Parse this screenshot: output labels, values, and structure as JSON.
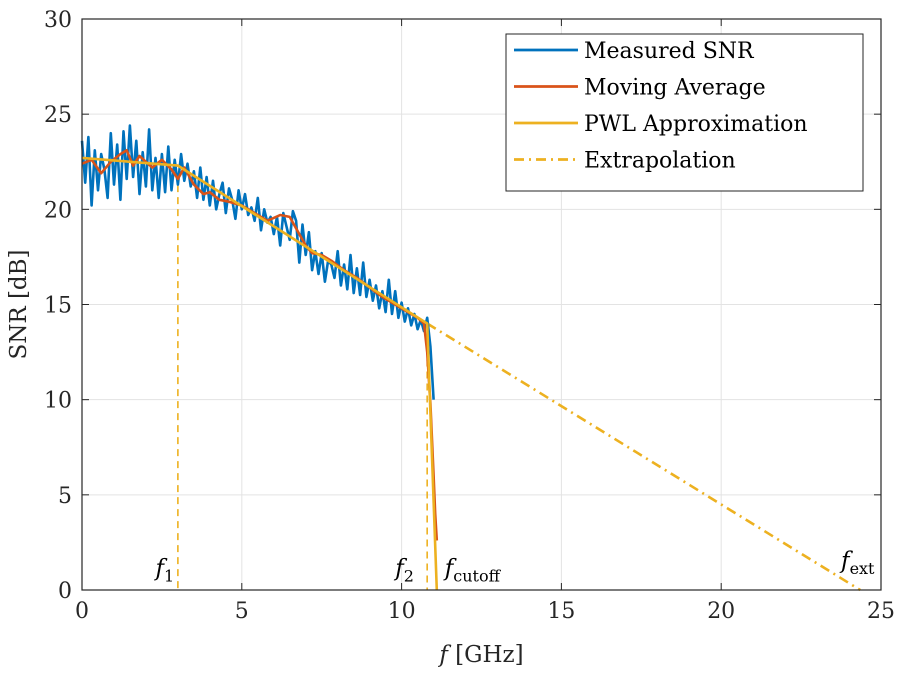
{
  "chart_data": {
    "type": "line",
    "xlabel_italic": "f",
    "xlabel_rest": " [GHz]",
    "ylabel": "SNR [dB]",
    "xlim": [
      0,
      25
    ],
    "ylim": [
      0,
      30
    ],
    "xticks": [
      0,
      5,
      10,
      15,
      20,
      25
    ],
    "yticks": [
      0,
      5,
      10,
      15,
      20,
      25,
      30
    ],
    "grid": true,
    "legend_position": "top-right",
    "colors": {
      "measured": "#0072BD",
      "moving_average": "#D95319",
      "pwl": "#EDB120",
      "extrapolation": "#EDB120"
    },
    "series": [
      {
        "name": "Measured SNR",
        "x": [
          0.0,
          0.1,
          0.2,
          0.3,
          0.4,
          0.5,
          0.6,
          0.7,
          0.8,
          0.9,
          1.0,
          1.1,
          1.2,
          1.3,
          1.4,
          1.5,
          1.6,
          1.7,
          1.8,
          1.9,
          2.0,
          2.1,
          2.2,
          2.3,
          2.4,
          2.5,
          2.6,
          2.7,
          2.8,
          2.9,
          3.0,
          3.1,
          3.2,
          3.3,
          3.4,
          3.5,
          3.6,
          3.7,
          3.8,
          3.9,
          4.0,
          4.1,
          4.2,
          4.3,
          4.4,
          4.5,
          4.6,
          4.7,
          4.8,
          4.9,
          5.0,
          5.1,
          5.2,
          5.3,
          5.4,
          5.5,
          5.6,
          5.7,
          5.8,
          5.9,
          6.0,
          6.1,
          6.2,
          6.3,
          6.4,
          6.5,
          6.6,
          6.7,
          6.8,
          6.9,
          7.0,
          7.1,
          7.2,
          7.3,
          7.4,
          7.5,
          7.6,
          7.7,
          7.8,
          7.9,
          8.0,
          8.1,
          8.2,
          8.3,
          8.4,
          8.5,
          8.6,
          8.7,
          8.8,
          8.9,
          9.0,
          9.1,
          9.2,
          9.3,
          9.4,
          9.5,
          9.6,
          9.7,
          9.8,
          9.9,
          10.0,
          10.1,
          10.2,
          10.3,
          10.4,
          10.5,
          10.6,
          10.7,
          10.8,
          10.9,
          11.0
        ],
        "y": [
          23.6,
          21.4,
          23.8,
          20.2,
          23.1,
          21.0,
          22.9,
          22.1,
          20.6,
          24.0,
          21.3,
          23.4,
          20.5,
          24.1,
          21.6,
          24.4,
          21.7,
          23.6,
          20.8,
          23.0,
          21.2,
          24.2,
          21.0,
          22.7,
          20.6,
          22.9,
          20.9,
          23.3,
          21.0,
          22.6,
          21.3,
          22.9,
          21.5,
          22.4,
          21.2,
          22.0,
          20.6,
          22.2,
          20.5,
          21.7,
          20.2,
          21.5,
          20.0,
          20.8,
          21.4,
          19.8,
          21.1,
          20.5,
          19.5,
          21.0,
          20.0,
          20.8,
          19.7,
          20.1,
          19.4,
          20.6,
          18.9,
          20.0,
          19.3,
          19.6,
          18.7,
          19.6,
          18.1,
          19.8,
          19.1,
          18.4,
          19.9,
          19.4,
          17.2,
          19.2,
          17.6,
          18.8,
          16.8,
          17.8,
          16.6,
          17.7,
          16.2,
          17.3,
          17.1,
          16.4,
          17.8,
          16.0,
          17.1,
          15.8,
          17.6,
          15.6,
          16.9,
          15.5,
          17.2,
          15.4,
          16.3,
          15.2,
          16.0,
          14.8,
          15.7,
          14.6,
          16.3,
          14.5,
          15.7,
          14.3,
          15.1,
          14.1,
          14.8,
          13.9,
          14.5,
          13.7,
          14.2,
          13.6,
          14.3,
          12.8,
          10.0
        ]
      },
      {
        "name": "Moving Average",
        "x": [
          0.0,
          0.3,
          0.6,
          0.9,
          1.2,
          1.4,
          1.6,
          1.8,
          2.0,
          2.2,
          2.5,
          2.8,
          3.0,
          3.2,
          3.5,
          3.8,
          4.0,
          4.3,
          4.6,
          5.0,
          5.4,
          5.8,
          6.2,
          6.5,
          6.8,
          7.0,
          7.2,
          7.5,
          7.8,
          8.2,
          8.6,
          9.0,
          9.4,
          9.8,
          10.2,
          10.5,
          10.7,
          10.8,
          10.9,
          11.0,
          11.05,
          11.1
        ],
        "y": [
          22.4,
          22.6,
          21.9,
          22.5,
          22.9,
          23.1,
          22.3,
          22.8,
          22.5,
          22.2,
          22.6,
          22.1,
          21.6,
          22.2,
          21.3,
          20.8,
          20.9,
          20.5,
          20.4,
          20.2,
          19.8,
          19.4,
          19.7,
          19.6,
          18.7,
          18.1,
          17.7,
          17.6,
          17.3,
          16.8,
          16.4,
          15.9,
          15.4,
          15.0,
          14.6,
          14.3,
          14.0,
          12.5,
          9.8,
          6.0,
          4.0,
          2.6
        ]
      },
      {
        "name": "PWL Approximation",
        "x": [
          0.0,
          3.0,
          10.8,
          11.1
        ],
        "y": [
          22.7,
          22.3,
          14.0,
          0.0
        ]
      },
      {
        "name": "Extrapolation",
        "x": [
          10.8,
          24.35
        ],
        "y": [
          14.0,
          0.0
        ]
      }
    ],
    "vlines": [
      {
        "x": 3.0,
        "y_top": 21.9
      },
      {
        "x": 10.8,
        "y_top": 14.0
      }
    ],
    "annotations": [
      {
        "main": "f",
        "sub": "1",
        "x": 2.3,
        "y": 0.75
      },
      {
        "main": "f",
        "sub": "2",
        "x": 9.8,
        "y": 0.75
      },
      {
        "main": "f",
        "sub": "cutoff",
        "x": 11.35,
        "y": 0.75
      },
      {
        "main": "f",
        "sub": "ext",
        "x": 23.75,
        "y": 1.15
      }
    ]
  }
}
